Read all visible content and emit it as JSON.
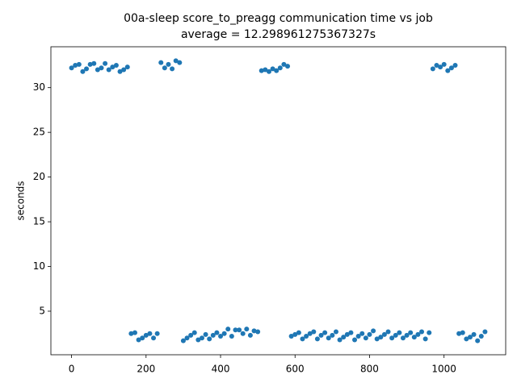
{
  "chart_data": {
    "type": "scatter",
    "title": "00a-sleep score_to_preagg communication time vs job",
    "subtitle": "average = 12.298961275367327s",
    "y_label": "seconds",
    "color": "#1f77b4",
    "x": [
      0,
      10,
      20,
      30,
      40,
      50,
      60,
      70,
      80,
      90,
      100,
      110,
      120,
      130,
      140,
      150,
      160,
      170,
      180,
      190,
      200,
      210,
      220,
      230,
      240,
      250,
      260,
      270,
      280,
      290,
      300,
      310,
      320,
      330,
      340,
      350,
      360,
      370,
      380,
      390,
      400,
      410,
      420,
      430,
      440,
      450,
      460,
      470,
      480,
      490,
      500,
      510,
      520,
      530,
      540,
      550,
      560,
      570,
      580,
      590,
      600,
      610,
      620,
      630,
      640,
      650,
      660,
      670,
      680,
      690,
      700,
      710,
      720,
      730,
      740,
      750,
      760,
      770,
      780,
      790,
      800,
      810,
      820,
      830,
      840,
      850,
      860,
      870,
      880,
      890,
      900,
      910,
      920,
      930,
      940,
      950,
      960,
      970,
      980,
      990,
      1000,
      1010,
      1020,
      1030,
      1040,
      1050,
      1060,
      1070,
      1080,
      1090,
      1100,
      1110
    ],
    "values": [
      32.2,
      32.5,
      32.6,
      31.8,
      32.1,
      32.6,
      32.7,
      32.0,
      32.2,
      32.7,
      32.0,
      32.3,
      32.5,
      31.8,
      32.0,
      32.3,
      2.5,
      2.6,
      1.8,
      2.0,
      2.3,
      2.5,
      2.0,
      2.5,
      32.8,
      32.2,
      32.6,
      32.1,
      33.0,
      32.8,
      1.7,
      2.0,
      2.3,
      2.6,
      1.8,
      2.0,
      2.4,
      1.9,
      2.3,
      2.6,
      2.2,
      2.5,
      3.0,
      2.2,
      2.9,
      2.9,
      2.5,
      3.0,
      2.3,
      2.8,
      2.7,
      31.9,
      32.0,
      31.8,
      32.1,
      31.9,
      32.2,
      32.6,
      32.4,
      2.2,
      2.4,
      2.6,
      1.9,
      2.2,
      2.5,
      2.7,
      1.9,
      2.3,
      2.6,
      2.0,
      2.3,
      2.7,
      1.8,
      2.1,
      2.4,
      2.6,
      1.8,
      2.2,
      2.5,
      2.0,
      2.4,
      2.8,
      1.9,
      2.1,
      2.4,
      2.7,
      2.0,
      2.3,
      2.6,
      2.0,
      2.3,
      2.6,
      2.1,
      2.4,
      2.7,
      1.9,
      2.6,
      32.1,
      32.5,
      32.3,
      32.6,
      31.9,
      32.2,
      32.5,
      2.5,
      2.6,
      1.9,
      2.1,
      2.4,
      1.7,
      2.2,
      2.7
    ],
    "xlim": [
      -55.5,
      1165.5
    ],
    "ylim": [
      0.13,
      34.57
    ],
    "xticks": [
      0,
      200,
      400,
      600,
      800,
      1000
    ],
    "yticks": [
      5,
      10,
      15,
      20,
      25,
      30
    ]
  }
}
